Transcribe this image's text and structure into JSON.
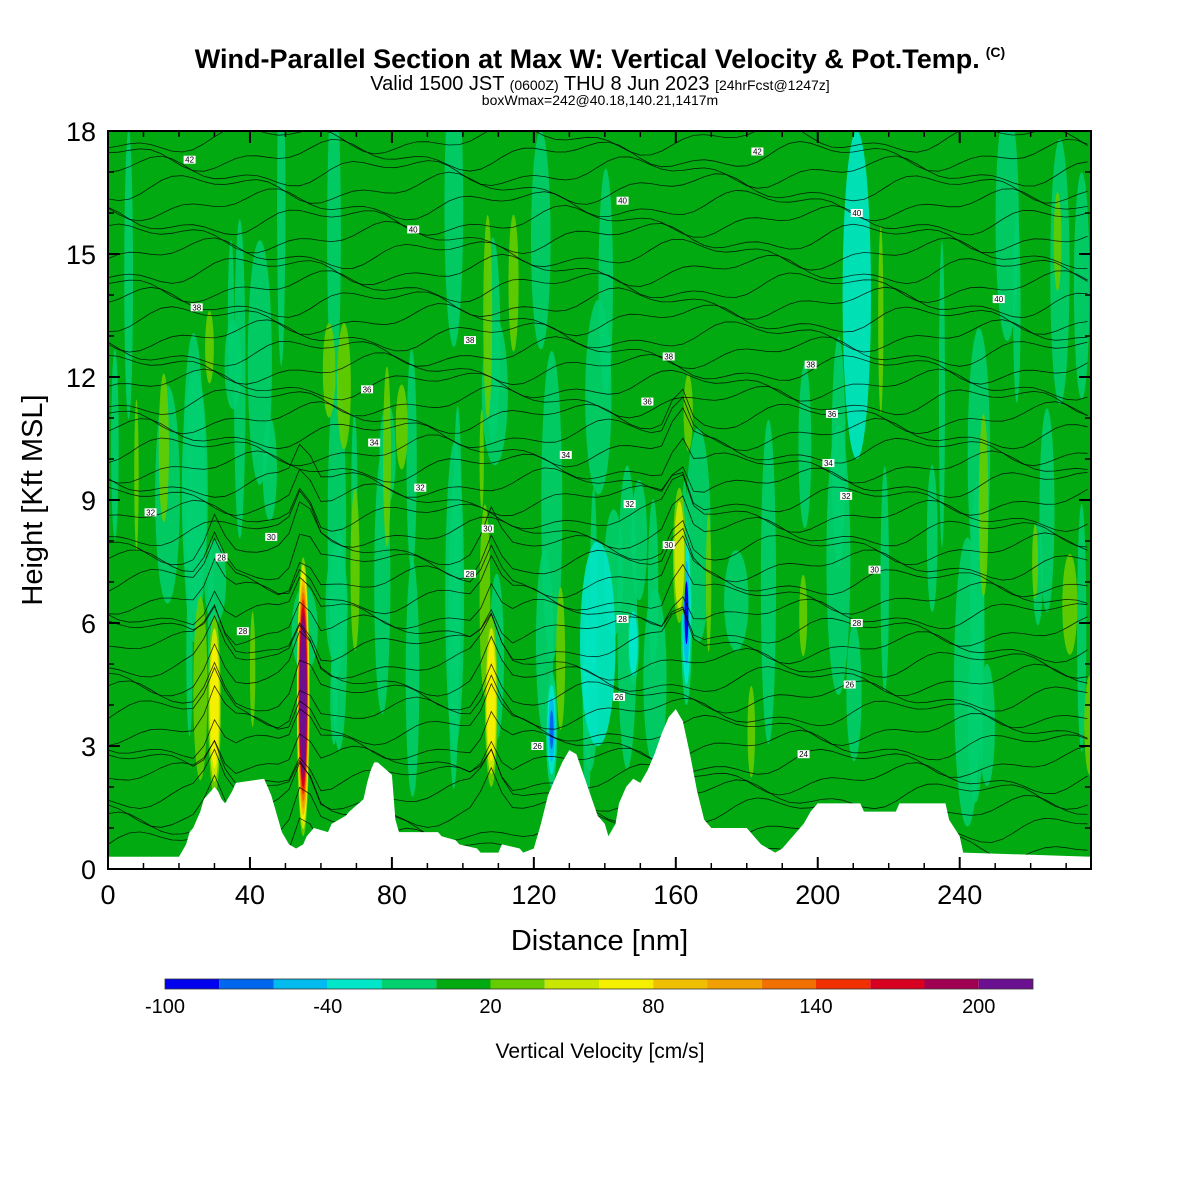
{
  "header": {
    "title": "Wind-Parallel Section at Max W: Vertical Velocity & Pot.Temp.",
    "copyright": "(C)",
    "valid_prefix": "Valid 1500 JST",
    "valid_utc": "(0600Z)",
    "valid_date": "THU 8 Jun 2023",
    "forecast": "[24hrFcst@1247z]",
    "box_info": "boxWmax=242@40.18,140.21,1417m"
  },
  "chart_data": {
    "type": "heatmap",
    "title": "Wind-Parallel Section at Max W: Vertical Velocity & Pot.Temp.",
    "xlabel": "Distance [nm]",
    "ylabel": "Height [Kft MSL]",
    "xlim": [
      0,
      277
    ],
    "ylim": [
      0,
      18
    ],
    "x_ticks": [
      0,
      40,
      80,
      120,
      160,
      200,
      240
    ],
    "y_ticks": [
      0,
      3,
      6,
      9,
      12,
      15,
      18
    ],
    "colorbar": {
      "label": "Vertical Velocity [cm/s]",
      "levels": [
        -100,
        -80,
        -60,
        -40,
        -20,
        0,
        20,
        40,
        60,
        80,
        100,
        120,
        140,
        160,
        180,
        200,
        220
      ],
      "tick_labels": [
        "-100",
        "-40",
        "20",
        "80",
        "140",
        "200"
      ],
      "tick_values": [
        -100,
        -40,
        20,
        80,
        140,
        200
      ],
      "colors": [
        "#0000ee",
        "#0066ee",
        "#00bbee",
        "#00e6c8",
        "#00d070",
        "#00aa10",
        "#66cc00",
        "#c8e600",
        "#f5f000",
        "#f0c000",
        "#f0a000",
        "#f07000",
        "#f03000",
        "#d80020",
        "#a00050",
        "#6a1090"
      ]
    },
    "terrain_kft": {
      "x": [
        0,
        20,
        22,
        23,
        24,
        25,
        26,
        27,
        29,
        30,
        31,
        32,
        33,
        35,
        36,
        44,
        45,
        46,
        47,
        48,
        49,
        51,
        53,
        55,
        56,
        57,
        58,
        62,
        63,
        67,
        68,
        72,
        73,
        74,
        75,
        76,
        80,
        81,
        82,
        93,
        94,
        98,
        99,
        104,
        105,
        110,
        111,
        116,
        117,
        120,
        122,
        124,
        126,
        128,
        130,
        132,
        134,
        136,
        138,
        140,
        141,
        143,
        144,
        146,
        148,
        150,
        152,
        154,
        156,
        158,
        160,
        162,
        164,
        166,
        168,
        170,
        180,
        182,
        184,
        186,
        188,
        190,
        192,
        196,
        198,
        200,
        204,
        212,
        213,
        222,
        223,
        236,
        237,
        240,
        241,
        277
      ],
      "y": [
        0.3,
        0.3,
        0.6,
        0.9,
        1.0,
        1.2,
        1.4,
        1.7,
        1.9,
        2.0,
        1.9,
        1.7,
        1.6,
        1.9,
        2.1,
        2.2,
        2.0,
        1.8,
        1.5,
        1.2,
        0.9,
        0.6,
        0.5,
        0.6,
        0.8,
        0.9,
        1.0,
        0.9,
        1.1,
        1.3,
        1.4,
        1.7,
        2.1,
        2.4,
        2.6,
        2.6,
        2.3,
        1.2,
        0.9,
        0.9,
        0.8,
        0.7,
        0.6,
        0.5,
        0.4,
        0.4,
        0.6,
        0.5,
        0.4,
        0.5,
        1.1,
        1.8,
        2.2,
        2.6,
        2.9,
        2.8,
        2.3,
        1.8,
        1.3,
        1.1,
        0.8,
        1.1,
        1.6,
        2.0,
        2.2,
        2.1,
        2.4,
        2.8,
        3.3,
        3.7,
        3.9,
        3.6,
        2.8,
        1.9,
        1.2,
        1.0,
        1.0,
        0.8,
        0.6,
        0.5,
        0.4,
        0.5,
        0.7,
        1.1,
        1.4,
        1.6,
        1.6,
        1.6,
        1.4,
        1.4,
        1.6,
        1.6,
        1.2,
        0.8,
        0.4,
        0.3
      ]
    },
    "updraft_cores": [
      {
        "x": 30,
        "ybot": 1.8,
        "ytop": 6.2,
        "w": 70
      },
      {
        "x": 55,
        "ybot": 0.8,
        "ytop": 7.6,
        "w": 242
      },
      {
        "x": 108,
        "ybot": 2.0,
        "ytop": 6.2,
        "w": 80
      },
      {
        "x": 161,
        "ybot": 6.0,
        "ytop": 9.3,
        "w": 50
      }
    ],
    "downdraft_cores": [
      {
        "x": 125,
        "ybot": 2.0,
        "ytop": 4.8,
        "w": -80
      },
      {
        "x": 163,
        "ybot": 4.0,
        "ytop": 8.5,
        "w": -90
      },
      {
        "x": 148,
        "ybot": 4.5,
        "ytop": 6.5,
        "w": -40
      }
    ],
    "theta_contour_labels": [
      {
        "x": 23,
        "y": 17.3,
        "t": "42"
      },
      {
        "x": 86,
        "y": 15.6,
        "t": "40"
      },
      {
        "x": 25,
        "y": 13.7,
        "t": "38"
      },
      {
        "x": 102,
        "y": 12.9,
        "t": "38"
      },
      {
        "x": 73,
        "y": 11.7,
        "t": "36"
      },
      {
        "x": 75,
        "y": 10.4,
        "t": "34"
      },
      {
        "x": 12,
        "y": 8.7,
        "t": "32"
      },
      {
        "x": 88,
        "y": 9.3,
        "t": "32"
      },
      {
        "x": 46,
        "y": 8.1,
        "t": "30"
      },
      {
        "x": 107,
        "y": 8.3,
        "t": "30"
      },
      {
        "x": 32,
        "y": 7.6,
        "t": "28"
      },
      {
        "x": 102,
        "y": 7.2,
        "t": "28"
      },
      {
        "x": 38,
        "y": 5.8,
        "t": "28"
      },
      {
        "x": 121,
        "y": 3.0,
        "t": "26"
      },
      {
        "x": 183,
        "y": 17.5,
        "t": "42"
      },
      {
        "x": 145,
        "y": 16.3,
        "t": "40"
      },
      {
        "x": 211,
        "y": 16.0,
        "t": "40"
      },
      {
        "x": 251,
        "y": 13.9,
        "t": "40"
      },
      {
        "x": 158,
        "y": 12.5,
        "t": "38"
      },
      {
        "x": 198,
        "y": 12.3,
        "t": "38"
      },
      {
        "x": 152,
        "y": 11.4,
        "t": "36"
      },
      {
        "x": 204,
        "y": 11.1,
        "t": "36"
      },
      {
        "x": 129,
        "y": 10.1,
        "t": "34"
      },
      {
        "x": 203,
        "y": 9.9,
        "t": "34"
      },
      {
        "x": 147,
        "y": 8.9,
        "t": "32"
      },
      {
        "x": 208,
        "y": 9.1,
        "t": "32"
      },
      {
        "x": 158,
        "y": 7.9,
        "t": "30"
      },
      {
        "x": 216,
        "y": 7.3,
        "t": "30"
      },
      {
        "x": 145,
        "y": 6.1,
        "t": "28"
      },
      {
        "x": 211,
        "y": 6.0,
        "t": "28"
      },
      {
        "x": 144,
        "y": 4.2,
        "t": "26"
      },
      {
        "x": 209,
        "y": 4.5,
        "t": "26"
      },
      {
        "x": 196,
        "y": 2.8,
        "t": "24"
      }
    ]
  },
  "colorbar_label": "Vertical Velocity [cm/s]"
}
